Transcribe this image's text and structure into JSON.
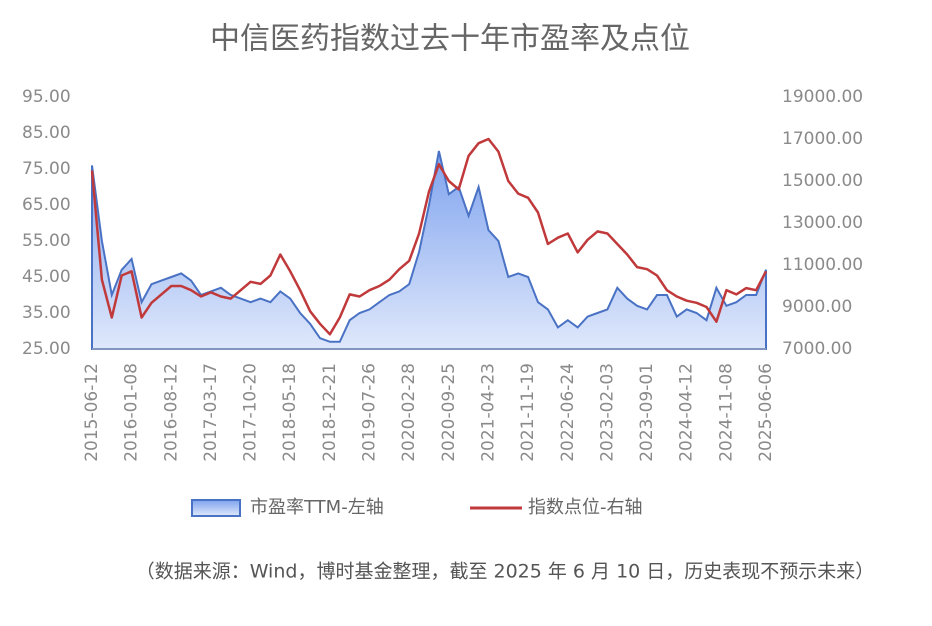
{
  "chart_data": {
    "type": "line",
    "title": "中信医药指数过去十年市盈率及点位",
    "note": "（数据来源：Wind，博时基金整理，截至 2025 年 6 月 10 日，历史表现不预示未来）",
    "categories": [
      "2015-06-12",
      null,
      null,
      null,
      "2016-01-08",
      null,
      null,
      null,
      "2016-08-12",
      null,
      null,
      null,
      "2017-03-17",
      null,
      null,
      null,
      "2017-10-20",
      null,
      null,
      null,
      "2018-05-18",
      null,
      null,
      null,
      "2018-12-21",
      null,
      null,
      null,
      "2019-07-26",
      null,
      null,
      null,
      "2020-02-28",
      null,
      null,
      null,
      "2020-09-25",
      null,
      null,
      null,
      "2021-04-23",
      null,
      null,
      null,
      "2021-11-19",
      null,
      null,
      null,
      "2022-06-24",
      null,
      null,
      null,
      "2023-02-03",
      null,
      null,
      null,
      "2023-09-01",
      null,
      null,
      null,
      "2024-04-12",
      null,
      null,
      null,
      "2024-11-08",
      null,
      null,
      null,
      "2025-06-06"
    ],
    "series": [
      {
        "name": "市盈率TTM-左轴",
        "color": "#4a72c4",
        "fill": true,
        "values": [
          76,
          55,
          40,
          47,
          50,
          38,
          43,
          44,
          45,
          46,
          44,
          40,
          41,
          42,
          40,
          39,
          38,
          39,
          38,
          41,
          39,
          35,
          32,
          28,
          27,
          27,
          33,
          35,
          36,
          38,
          40,
          41,
          43,
          52,
          65,
          80,
          68,
          70,
          62,
          70,
          58,
          55,
          45,
          46,
          45,
          38,
          36,
          31,
          33,
          31,
          34,
          35,
          36,
          42,
          39,
          37,
          36,
          40,
          40,
          34,
          36,
          35,
          33,
          42,
          37,
          38,
          40,
          40,
          47
        ]
      },
      {
        "name": "指数点位-右轴",
        "color": "#c0393b",
        "axis": "y2",
        "values": [
          15500,
          10300,
          8500,
          10500,
          10700,
          8500,
          9200,
          9600,
          10000,
          10000,
          9800,
          9500,
          9700,
          9500,
          9400,
          9800,
          10200,
          10100,
          10500,
          11500,
          10700,
          9800,
          8800,
          8200,
          7700,
          8500,
          9600,
          9500,
          9800,
          10000,
          10300,
          10800,
          11200,
          12500,
          14500,
          15800,
          15000,
          14600,
          16200,
          16800,
          17000,
          16400,
          15000,
          14400,
          14200,
          13500,
          12000,
          12300,
          12500,
          11600,
          12200,
          12600,
          12500,
          12000,
          11500,
          10900,
          10800,
          10500,
          9800,
          9500,
          9300,
          9200,
          9000,
          8300,
          9800,
          9600,
          9900,
          9800,
          10700
        ]
      }
    ],
    "ylim": [
      25,
      95
    ],
    "yticks": [
      {
        "value": 25,
        "label": "25.00"
      },
      {
        "value": 35,
        "label": "35.00"
      },
      {
        "value": 45,
        "label": "45.00"
      },
      {
        "value": 55,
        "label": "55.00"
      },
      {
        "value": 65,
        "label": "65.00"
      },
      {
        "value": 75,
        "label": "75.00"
      },
      {
        "value": 85,
        "label": "85.00"
      },
      {
        "value": 95,
        "label": "95.00"
      }
    ],
    "y2lim": [
      7000,
      19000
    ],
    "y2ticks": [
      {
        "value": 7000,
        "label": "7000.00"
      },
      {
        "value": 9000,
        "label": "9000.00"
      },
      {
        "value": 11000,
        "label": "11000.00"
      },
      {
        "value": 13000,
        "label": "13000.00"
      },
      {
        "value": 15000,
        "label": "15000.00"
      },
      {
        "value": 17000,
        "label": "17000.00"
      },
      {
        "value": 19000,
        "label": "19000.00"
      }
    ]
  }
}
